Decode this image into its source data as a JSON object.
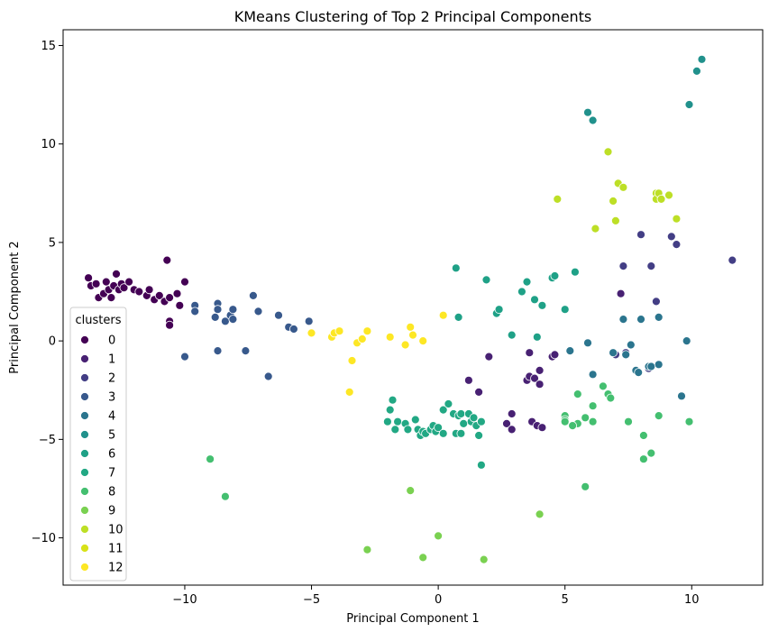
{
  "chart_data": {
    "type": "scatter",
    "title": "KMeans Clustering of Top 2 Principal Components",
    "xlabel": "Principal Component 1",
    "ylabel": "Principal Component 2",
    "xlim": [
      -14.8,
      12.8
    ],
    "ylim": [
      -12.4,
      15.8
    ],
    "xticks": [
      -10,
      -5,
      0,
      5,
      10
    ],
    "yticks": [
      -10,
      -5,
      0,
      5,
      10,
      15
    ],
    "grid": false,
    "legend": {
      "title": "clusters",
      "placement": "lower-left"
    },
    "series": [
      {
        "name": "0",
        "color": "#440154",
        "points": [
          [
            -13.8,
            3.2
          ],
          [
            -13.7,
            2.8
          ],
          [
            -13.5,
            2.9
          ],
          [
            -13.4,
            2.2
          ],
          [
            -13.2,
            2.4
          ],
          [
            -13.1,
            3.0
          ],
          [
            -13.0,
            2.6
          ],
          [
            -12.9,
            2.2
          ],
          [
            -12.8,
            2.8
          ],
          [
            -12.7,
            3.4
          ],
          [
            -12.6,
            2.6
          ],
          [
            -12.5,
            2.9
          ],
          [
            -12.4,
            2.7
          ],
          [
            -12.2,
            3.0
          ],
          [
            -12.0,
            2.6
          ],
          [
            -11.8,
            2.5
          ],
          [
            -11.5,
            2.3
          ],
          [
            -11.4,
            2.6
          ],
          [
            -11.2,
            2.1
          ],
          [
            -11.0,
            2.3
          ],
          [
            -10.8,
            2.0
          ],
          [
            -10.6,
            2.2
          ],
          [
            -10.7,
            4.1
          ],
          [
            -10.3,
            2.4
          ],
          [
            -10.0,
            3.0
          ],
          [
            -10.6,
            1.0
          ],
          [
            -10.6,
            0.8
          ],
          [
            -10.2,
            1.8
          ]
        ]
      },
      {
        "name": "1",
        "color": "#482173",
        "points": [
          [
            1.2,
            -2.0
          ],
          [
            1.6,
            -2.6
          ],
          [
            2.0,
            -0.8
          ],
          [
            2.7,
            -4.2
          ],
          [
            2.9,
            -3.7
          ],
          [
            2.9,
            -4.5
          ],
          [
            3.5,
            -2.0
          ],
          [
            3.6,
            -1.8
          ],
          [
            3.6,
            -0.6
          ],
          [
            3.7,
            -4.1
          ],
          [
            3.8,
            -1.9
          ],
          [
            3.9,
            -4.3
          ],
          [
            4.0,
            -1.5
          ],
          [
            4.0,
            -2.2
          ],
          [
            4.1,
            -4.4
          ],
          [
            4.5,
            -0.8
          ],
          [
            7.2,
            2.4
          ],
          [
            4.6,
            -0.7
          ]
        ]
      },
      {
        "name": "2",
        "color": "#433e85",
        "points": [
          [
            7.3,
            3.8
          ],
          [
            8.0,
            5.4
          ],
          [
            8.4,
            3.8
          ],
          [
            8.6,
            2.0
          ],
          [
            9.2,
            5.3
          ],
          [
            9.4,
            4.9
          ],
          [
            11.6,
            4.1
          ],
          [
            7.0,
            -0.7
          ],
          [
            7.4,
            -0.6
          ],
          [
            8.3,
            -1.4
          ]
        ]
      },
      {
        "name": "3",
        "color": "#38598c",
        "points": [
          [
            -9.6,
            1.8
          ],
          [
            -9.6,
            1.5
          ],
          [
            -8.7,
            1.9
          ],
          [
            -8.7,
            1.6
          ],
          [
            -8.4,
            1.0
          ],
          [
            -8.2,
            1.3
          ],
          [
            -8.1,
            1.6
          ],
          [
            -8.1,
            1.1
          ],
          [
            -7.3,
            2.3
          ],
          [
            -7.1,
            1.5
          ],
          [
            -6.3,
            1.3
          ],
          [
            -5.9,
            0.7
          ],
          [
            -5.7,
            0.6
          ],
          [
            -5.1,
            1.0
          ],
          [
            -8.8,
            1.2
          ],
          [
            -10.0,
            -0.8
          ],
          [
            -8.7,
            -0.5
          ],
          [
            -7.6,
            -0.5
          ],
          [
            -6.7,
            -1.8
          ]
        ]
      },
      {
        "name": "4",
        "color": "#2b758e",
        "points": [
          [
            5.2,
            -0.5
          ],
          [
            5.9,
            -0.1
          ],
          [
            6.1,
            -1.7
          ],
          [
            6.9,
            -0.6
          ],
          [
            7.3,
            1.1
          ],
          [
            7.4,
            -0.7
          ],
          [
            7.6,
            -0.2
          ],
          [
            7.8,
            -1.5
          ],
          [
            7.9,
            -1.6
          ],
          [
            8.0,
            1.1
          ],
          [
            8.3,
            -1.3
          ],
          [
            8.4,
            -1.3
          ],
          [
            8.7,
            1.2
          ],
          [
            8.7,
            -1.2
          ],
          [
            9.6,
            -2.8
          ],
          [
            9.8,
            0.0
          ]
        ]
      },
      {
        "name": "5",
        "color": "#21918c",
        "points": [
          [
            5.9,
            11.6
          ],
          [
            6.1,
            11.2
          ],
          [
            9.9,
            12.0
          ],
          [
            10.2,
            13.7
          ],
          [
            10.4,
            14.3
          ]
        ]
      },
      {
        "name": "6",
        "color": "#1fa187",
        "points": [
          [
            0.7,
            3.7
          ],
          [
            0.8,
            1.2
          ],
          [
            1.9,
            3.1
          ],
          [
            2.3,
            1.4
          ],
          [
            2.4,
            1.6
          ],
          [
            2.9,
            0.3
          ],
          [
            3.3,
            2.5
          ],
          [
            3.5,
            3.0
          ],
          [
            3.8,
            2.1
          ],
          [
            3.9,
            0.2
          ],
          [
            4.1,
            1.8
          ],
          [
            4.5,
            3.2
          ],
          [
            4.6,
            3.3
          ],
          [
            5.0,
            1.6
          ],
          [
            5.4,
            3.5
          ]
        ]
      },
      {
        "name": "7",
        "color": "#22a884",
        "points": [
          [
            -1.9,
            -3.5
          ],
          [
            -1.8,
            -3.0
          ],
          [
            -1.7,
            -4.5
          ],
          [
            -1.6,
            -4.1
          ],
          [
            -1.3,
            -4.2
          ],
          [
            -1.2,
            -4.5
          ],
          [
            -0.9,
            -4.0
          ],
          [
            -0.8,
            -4.5
          ],
          [
            -0.7,
            -4.8
          ],
          [
            -0.6,
            -4.6
          ],
          [
            -0.5,
            -4.7
          ],
          [
            -0.3,
            -4.5
          ],
          [
            -0.2,
            -4.3
          ],
          [
            -0.1,
            -4.6
          ],
          [
            0.0,
            -4.4
          ],
          [
            0.2,
            -3.5
          ],
          [
            0.2,
            -4.7
          ],
          [
            0.4,
            -3.2
          ],
          [
            0.6,
            -3.7
          ],
          [
            0.7,
            -4.7
          ],
          [
            0.8,
            -3.8
          ],
          [
            0.9,
            -3.7
          ],
          [
            0.9,
            -4.7
          ],
          [
            1.0,
            -4.2
          ],
          [
            1.2,
            -3.7
          ],
          [
            1.3,
            -4.1
          ],
          [
            1.4,
            -3.9
          ],
          [
            1.5,
            -4.3
          ],
          [
            1.6,
            -4.8
          ],
          [
            1.7,
            -4.1
          ],
          [
            1.7,
            -6.3
          ],
          [
            -2.0,
            -4.1
          ]
        ]
      },
      {
        "name": "8",
        "color": "#44bf70",
        "points": [
          [
            -9.0,
            -6.0
          ],
          [
            -8.4,
            -7.9
          ],
          [
            5.5,
            -2.7
          ],
          [
            5.5,
            -4.2
          ],
          [
            5.0,
            -3.8
          ],
          [
            5.0,
            -4.0
          ],
          [
            5.0,
            -4.1
          ],
          [
            5.3,
            -4.3
          ],
          [
            5.8,
            -3.9
          ],
          [
            6.1,
            -3.3
          ],
          [
            6.1,
            -4.1
          ],
          [
            6.5,
            -2.3
          ],
          [
            6.7,
            -2.7
          ],
          [
            6.8,
            -2.9
          ],
          [
            7.5,
            -4.1
          ],
          [
            8.1,
            -4.8
          ],
          [
            8.1,
            -6.0
          ],
          [
            8.4,
            -5.7
          ],
          [
            8.7,
            -3.8
          ],
          [
            9.9,
            -4.1
          ],
          [
            5.8,
            -7.4
          ]
        ]
      },
      {
        "name": "9",
        "color": "#7ad151",
        "points": [
          [
            -2.8,
            -10.6
          ],
          [
            -1.1,
            -7.6
          ],
          [
            -0.6,
            -11.0
          ],
          [
            0.0,
            -9.9
          ],
          [
            1.8,
            -11.1
          ],
          [
            4.0,
            -8.8
          ]
        ]
      },
      {
        "name": "10",
        "color": "#bddf26",
        "points": [
          [
            4.7,
            7.2
          ],
          [
            6.2,
            5.7
          ],
          [
            6.7,
            9.6
          ],
          [
            6.9,
            7.1
          ],
          [
            7.0,
            6.1
          ],
          [
            7.1,
            8.0
          ],
          [
            7.3,
            7.8
          ],
          [
            8.6,
            7.5
          ],
          [
            8.6,
            7.2
          ],
          [
            8.7,
            7.5
          ],
          [
            8.8,
            7.2
          ],
          [
            9.1,
            7.4
          ],
          [
            9.4,
            6.2
          ]
        ]
      },
      {
        "name": "11",
        "color": "#d8e219",
        "points": []
      },
      {
        "name": "12",
        "color": "#fde725",
        "points": [
          [
            -5.0,
            0.4
          ],
          [
            -4.2,
            0.2
          ],
          [
            -4.1,
            0.4
          ],
          [
            -3.9,
            0.5
          ],
          [
            -3.4,
            -1.0
          ],
          [
            -3.5,
            -2.6
          ],
          [
            -3.2,
            -0.1
          ],
          [
            -3.0,
            0.1
          ],
          [
            -2.8,
            0.5
          ],
          [
            -1.9,
            0.2
          ],
          [
            -1.3,
            -0.2
          ],
          [
            -1.1,
            0.7
          ],
          [
            -1.0,
            0.3
          ],
          [
            -0.6,
            0.0
          ],
          [
            0.2,
            1.3
          ]
        ]
      }
    ]
  }
}
